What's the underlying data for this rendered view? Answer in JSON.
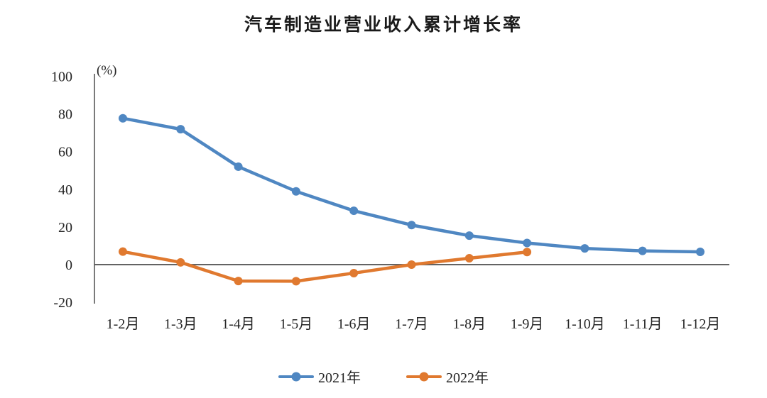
{
  "chart_data": {
    "type": "line",
    "title": "汽车制造业营业收入累计增长率",
    "unit_label": "(%)",
    "categories": [
      "1-2月",
      "1-3月",
      "1-4月",
      "1-5月",
      "1-6月",
      "1-7月",
      "1-8月",
      "1-9月",
      "1-10月",
      "1-11月",
      "1-12月"
    ],
    "series": [
      {
        "name": "2021年",
        "color": "#4F87C2",
        "values": [
          77.7,
          71.9,
          52.0,
          38.9,
          28.6,
          21.0,
          15.4,
          11.5,
          8.6,
          7.3,
          6.8
        ]
      },
      {
        "name": "2022年",
        "color": "#E0792F",
        "values": [
          6.9,
          1.2,
          -8.7,
          -8.8,
          -4.5,
          0.0,
          3.4,
          6.7,
          null,
          null,
          null
        ]
      }
    ],
    "y_ticks": [
      100,
      80,
      60,
      40,
      20,
      0,
      -20
    ],
    "ylim": [
      -20,
      100
    ],
    "x_axis_at_value": 0,
    "grid": false,
    "legend_position": "bottom",
    "axis_color": "#595959",
    "text_color": "#262626"
  }
}
